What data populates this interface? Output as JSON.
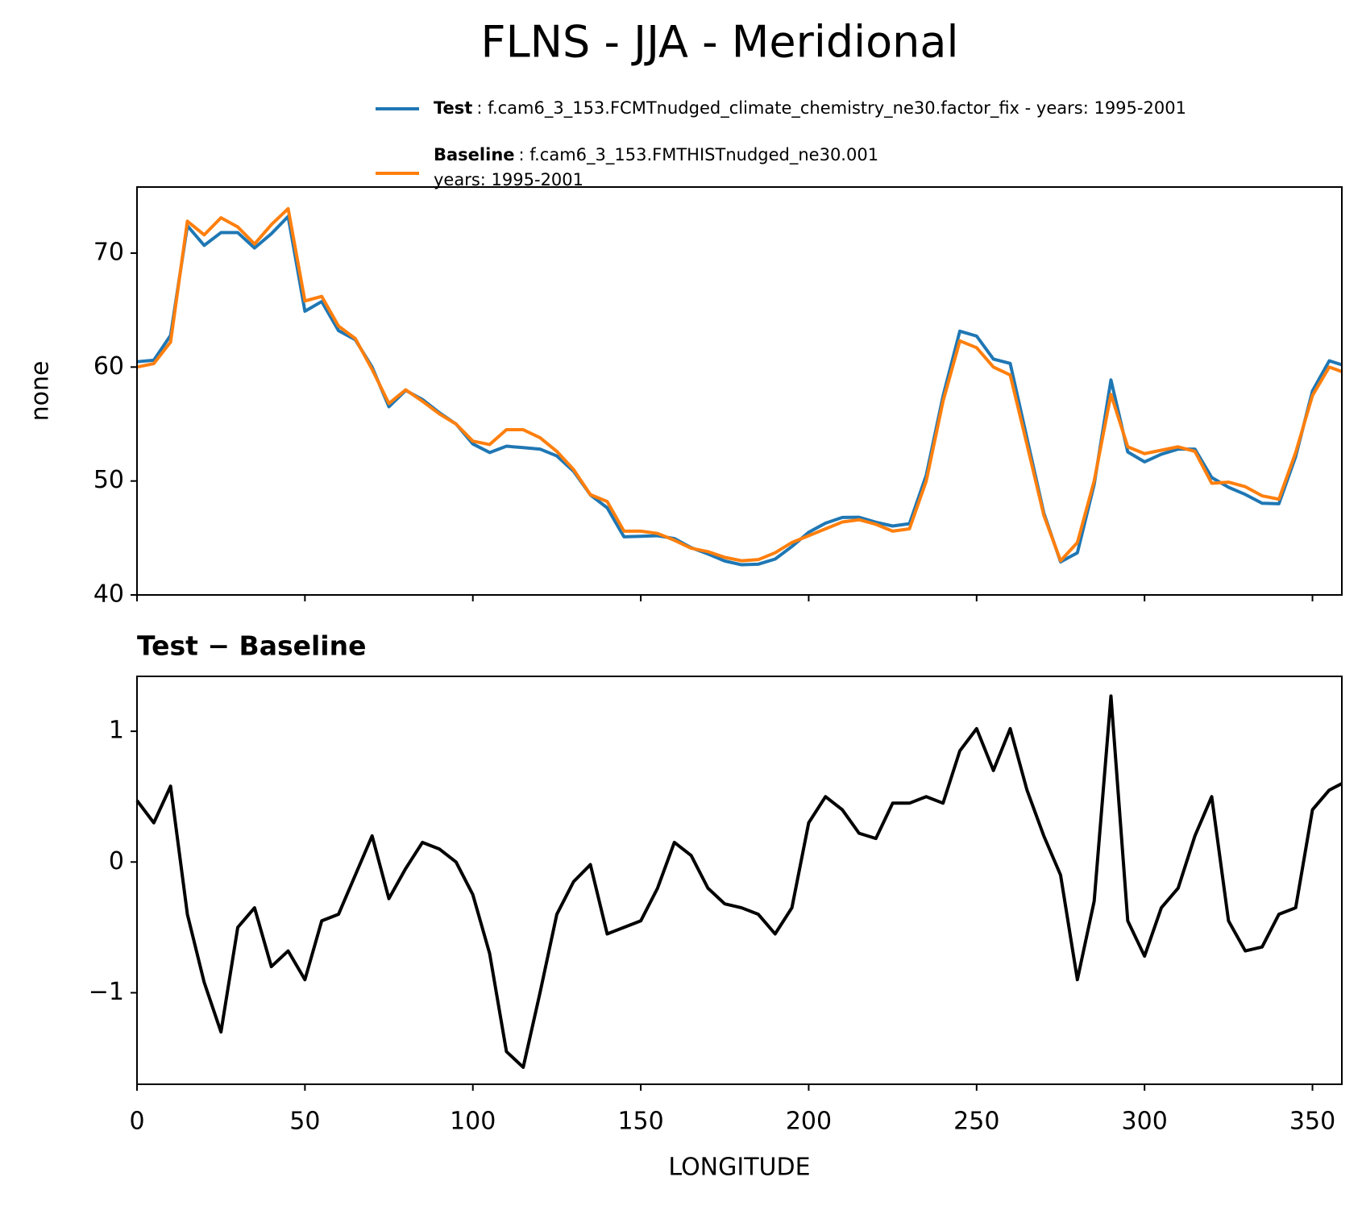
{
  "title": "FLNS - JJA - Meridional",
  "chart_data": [
    {
      "type": "line",
      "ylabel": "none",
      "x": [
        0,
        5,
        10,
        15,
        20,
        25,
        30,
        35,
        40,
        45,
        50,
        55,
        60,
        65,
        70,
        75,
        80,
        85,
        90,
        95,
        100,
        105,
        110,
        115,
        120,
        125,
        130,
        135,
        140,
        145,
        150,
        155,
        160,
        165,
        170,
        175,
        180,
        185,
        190,
        195,
        200,
        205,
        210,
        215,
        220,
        225,
        230,
        235,
        240,
        245,
        250,
        255,
        260,
        265,
        270,
        275,
        280,
        285,
        290,
        295,
        300,
        305,
        310,
        315,
        320,
        325,
        330,
        335,
        340,
        345,
        350,
        355,
        358.75
      ],
      "series": [
        {
          "name": "Test",
          "description": [
            ": f.cam6_3_153.FCMTnudged_climate_chemistry_ne30.factor_fix - years: 1995-2001"
          ],
          "color": "#1f77b4",
          "values": [
            60.47,
            60.6,
            62.78,
            72.4,
            70.68,
            71.8,
            71.8,
            70.45,
            71.7,
            73.22,
            64.9,
            65.75,
            63.2,
            62.4,
            60.0,
            56.52,
            57.95,
            57.15,
            56.0,
            55.0,
            53.25,
            52.5,
            53.05,
            52.93,
            52.8,
            52.2,
            50.85,
            48.78,
            47.65,
            45.1,
            45.15,
            45.2,
            44.95,
            44.15,
            43.6,
            42.98,
            42.65,
            42.7,
            43.15,
            44.25,
            45.5,
            46.3,
            46.8,
            46.82,
            46.38,
            46.05,
            46.25,
            50.5,
            57.45,
            63.15,
            62.72,
            60.7,
            60.32,
            53.75,
            47.2,
            42.9,
            43.7,
            49.7,
            58.87,
            52.55,
            51.68,
            52.35,
            52.8,
            52.8,
            50.3,
            49.45,
            48.82,
            48.05,
            48.0,
            52.15,
            57.9,
            60.55,
            60.2
          ]
        },
        {
          "name": "Baseline",
          "description": [
            ": f.cam6_3_153.FMTHISTnudged_ne30.001",
            "years: 1995-2001"
          ],
          "color": "#ff7f0e",
          "values": [
            60.0,
            60.3,
            62.2,
            72.8,
            71.6,
            73.1,
            72.3,
            70.8,
            72.5,
            73.9,
            65.8,
            66.2,
            63.6,
            62.5,
            59.8,
            56.8,
            58.0,
            57.0,
            55.9,
            55.0,
            53.5,
            53.2,
            54.5,
            54.5,
            53.8,
            52.6,
            51.0,
            48.8,
            48.2,
            45.6,
            45.6,
            45.4,
            44.8,
            44.1,
            43.8,
            43.3,
            43.0,
            43.1,
            43.7,
            44.6,
            45.2,
            45.8,
            46.4,
            46.6,
            46.2,
            45.6,
            45.8,
            50.0,
            57.0,
            62.3,
            61.7,
            60.0,
            59.3,
            53.2,
            47.0,
            43.0,
            44.6,
            50.0,
            57.6,
            53.0,
            52.4,
            52.7,
            53.0,
            52.6,
            49.8,
            49.9,
            49.5,
            48.7,
            48.4,
            52.5,
            57.5,
            60.0,
            59.6
          ]
        }
      ],
      "xlim": [
        0,
        358.75
      ],
      "xticks": [
        0,
        50,
        100,
        150,
        200,
        250,
        300,
        350
      ],
      "ylim": [
        40,
        75.8
      ],
      "yticks": [
        40,
        50,
        60,
        70
      ]
    },
    {
      "type": "line",
      "title": "Test − Baseline",
      "xlabel": "LONGITUDE",
      "x": [
        0,
        5,
        10,
        15,
        20,
        25,
        30,
        35,
        40,
        45,
        50,
        55,
        60,
        65,
        70,
        75,
        80,
        85,
        90,
        95,
        100,
        105,
        110,
        115,
        120,
        125,
        130,
        135,
        140,
        145,
        150,
        155,
        160,
        165,
        170,
        175,
        180,
        185,
        190,
        195,
        200,
        205,
        210,
        215,
        220,
        225,
        230,
        235,
        240,
        245,
        250,
        255,
        260,
        265,
        270,
        275,
        280,
        285,
        290,
        295,
        300,
        305,
        310,
        315,
        320,
        325,
        330,
        335,
        340,
        345,
        350,
        355,
        358.75
      ],
      "series": [
        {
          "color": "#000000",
          "values": [
            0.47,
            0.3,
            0.58,
            -0.4,
            -0.92,
            -1.3,
            -0.5,
            -0.35,
            -0.8,
            -0.68,
            -0.9,
            -0.45,
            -0.4,
            -0.1,
            0.2,
            -0.28,
            -0.05,
            0.15,
            0.1,
            0.0,
            -0.25,
            -0.7,
            -1.45,
            -1.57,
            -1.0,
            -0.4,
            -0.15,
            -0.02,
            -0.55,
            -0.5,
            -0.45,
            -0.2,
            0.15,
            0.05,
            -0.2,
            -0.32,
            -0.35,
            -0.4,
            -0.55,
            -0.35,
            0.3,
            0.5,
            0.4,
            0.22,
            0.18,
            0.45,
            0.45,
            0.5,
            0.45,
            0.85,
            1.02,
            0.7,
            1.02,
            0.55,
            0.2,
            -0.1,
            -0.9,
            -0.3,
            1.27,
            -0.45,
            -0.72,
            -0.35,
            -0.2,
            0.2,
            0.5,
            -0.45,
            -0.68,
            -0.65,
            -0.4,
            -0.35,
            0.4,
            0.55,
            0.6
          ]
        }
      ],
      "xlim": [
        0,
        358.75
      ],
      "xticks": [
        0,
        50,
        100,
        150,
        200,
        250,
        300,
        350
      ],
      "ylim": [
        -1.7,
        1.42
      ],
      "yticks": [
        {
          "value": -1,
          "label": "−1"
        },
        0,
        1
      ]
    }
  ]
}
